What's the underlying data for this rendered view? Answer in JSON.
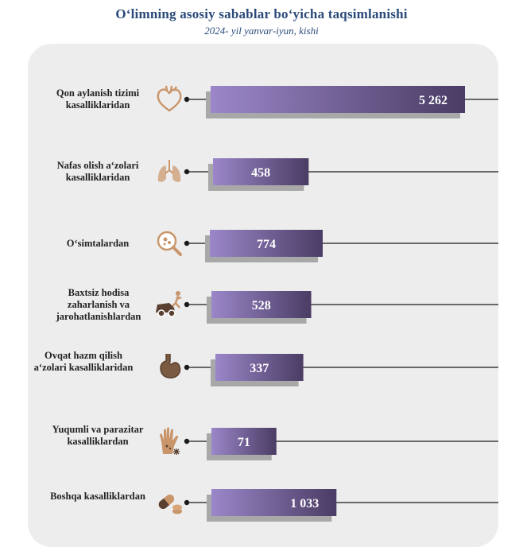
{
  "header": {
    "title": "O‘limning asosiy sabablar bo‘yicha taqsimlanishi",
    "subtitle": "2024- yil yanvar-iyun, kishi"
  },
  "colors": {
    "bar_start": "#9b87c9",
    "bar_end": "#4a3c64",
    "shadow": "#a8a8a8",
    "icon": "#c9956a",
    "panel": "#ededed",
    "title": "#2a4a7a"
  },
  "chart_data": {
    "type": "bar",
    "orientation": "horizontal",
    "categories": [
      "Qon aylanish tizimi kasalliklaridan",
      "Nafas olish a‘zolari kasalliklaridan",
      "O‘simtalardan",
      "Baxtsiz hodisa zaharlanish va jarohatlanishlardan",
      "Ovqat hazm qilish a‘zolari kasalliklaridan",
      "Yuqumli va parazitar kasalliklardan",
      "Boshqa kasalliklardan"
    ],
    "values": [
      5262,
      458,
      774,
      528,
      337,
      71,
      1033
    ],
    "value_labels": [
      "5 262",
      "458",
      "774",
      "528",
      "337",
      "71",
      "1 033"
    ],
    "icons": [
      "heart-icon",
      "lungs-icon",
      "tumor-magnifier-icon",
      "car-accident-icon",
      "stomach-icon",
      "infected-hand-icon",
      "pills-icon"
    ]
  }
}
